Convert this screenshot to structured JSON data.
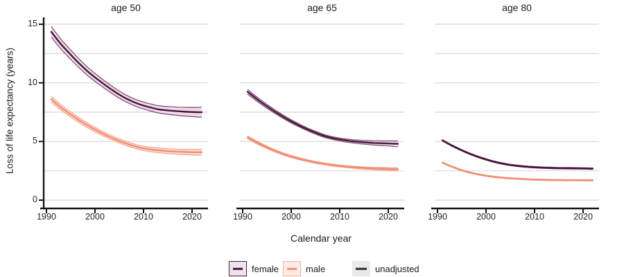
{
  "figure": {
    "y_axis_label": "Loss of life expectancy (years)",
    "x_axis_label": "Calendar year"
  },
  "colors": {
    "female_line": "#421739",
    "female_edge": "#7c4370",
    "female_band": "#eedbe9",
    "male_line": "#f08d74",
    "male_edge": "#f3a48a",
    "male_band": "#fbded4",
    "unadjusted_line": "#2d2d2d",
    "gridline": "#d8d8d8",
    "axis": "#141414",
    "legend_female_bg": "#f1e3ed",
    "legend_female_border": "#4a1f42",
    "legend_male_bg": "#fdece4",
    "legend_male_border": "#f3b098",
    "legend_unadjusted_bg": "#e9e9e9"
  },
  "legend": {
    "items": [
      {
        "label": "female"
      },
      {
        "label": "male"
      },
      {
        "label": "unadjusted"
      }
    ]
  },
  "chart_data": [
    {
      "type": "line",
      "title": "age 50",
      "ylim": [
        0,
        15
      ],
      "yticks": [
        0,
        5,
        10,
        15
      ],
      "gridline_step": 2.5,
      "xticks": [
        1990,
        2000,
        2010,
        2020
      ],
      "x": [
        1991,
        1993,
        1995,
        1997,
        1999,
        2001,
        2003,
        2005,
        2007,
        2009,
        2011,
        2013,
        2015,
        2017,
        2019,
        2021,
        2022
      ],
      "series": [
        {
          "name": "female",
          "values": [
            14.35,
            13.3,
            12.4,
            11.55,
            10.8,
            10.15,
            9.55,
            9.0,
            8.55,
            8.2,
            7.95,
            7.75,
            7.65,
            7.58,
            7.53,
            7.5,
            7.5
          ],
          "upper": [
            14.8,
            13.72,
            12.8,
            11.92,
            11.15,
            10.48,
            9.86,
            9.3,
            8.84,
            8.49,
            8.25,
            8.06,
            7.98,
            7.93,
            7.91,
            7.91,
            7.93
          ],
          "lower": [
            13.9,
            12.88,
            12.0,
            11.18,
            10.45,
            9.82,
            9.24,
            8.7,
            8.26,
            7.91,
            7.65,
            7.44,
            7.32,
            7.23,
            7.15,
            7.09,
            7.07
          ]
        },
        {
          "name": "male",
          "values": [
            8.6,
            7.9,
            7.3,
            6.75,
            6.25,
            5.8,
            5.4,
            5.05,
            4.75,
            4.5,
            4.35,
            4.25,
            4.18,
            4.13,
            4.1,
            4.08,
            4.08
          ],
          "upper": [
            8.85,
            8.13,
            7.52,
            6.96,
            6.45,
            5.99,
            5.58,
            5.23,
            4.93,
            4.68,
            4.54,
            4.45,
            4.39,
            4.35,
            4.33,
            4.33,
            4.34
          ],
          "lower": [
            8.35,
            7.67,
            7.08,
            6.54,
            6.05,
            5.61,
            5.22,
            4.87,
            4.57,
            4.32,
            4.16,
            4.05,
            3.97,
            3.91,
            3.87,
            3.83,
            3.82
          ]
        }
      ]
    },
    {
      "type": "line",
      "title": "age 65",
      "ylim": [
        0,
        15
      ],
      "yticks": [
        0,
        5,
        10,
        15
      ],
      "gridline_step": 2.5,
      "xticks": [
        1990,
        2000,
        2010,
        2020
      ],
      "x": [
        1991,
        1993,
        1995,
        1997,
        1999,
        2001,
        2003,
        2005,
        2007,
        2009,
        2011,
        2013,
        2015,
        2017,
        2019,
        2021,
        2022
      ],
      "series": [
        {
          "name": "female",
          "values": [
            9.25,
            8.6,
            8.0,
            7.45,
            6.95,
            6.5,
            6.1,
            5.75,
            5.45,
            5.25,
            5.1,
            5.0,
            4.93,
            4.88,
            4.85,
            4.82,
            4.8
          ],
          "upper": [
            9.45,
            8.78,
            8.17,
            7.6,
            7.09,
            6.63,
            6.22,
            5.87,
            5.57,
            5.37,
            5.23,
            5.14,
            5.09,
            5.06,
            5.05,
            5.05,
            5.05
          ],
          "lower": [
            9.05,
            8.42,
            7.83,
            7.3,
            6.81,
            6.37,
            5.98,
            5.63,
            5.33,
            5.13,
            4.97,
            4.86,
            4.77,
            4.7,
            4.65,
            4.59,
            4.55
          ]
        },
        {
          "name": "male",
          "values": [
            5.35,
            4.9,
            4.5,
            4.15,
            3.85,
            3.6,
            3.4,
            3.22,
            3.08,
            2.96,
            2.87,
            2.8,
            2.74,
            2.7,
            2.67,
            2.64,
            2.62
          ],
          "upper": [
            5.48,
            5.02,
            4.61,
            4.25,
            3.94,
            3.69,
            3.48,
            3.3,
            3.16,
            3.04,
            2.95,
            2.89,
            2.83,
            2.8,
            2.78,
            2.76,
            2.75
          ],
          "lower": [
            5.22,
            4.78,
            4.39,
            4.05,
            3.76,
            3.51,
            3.32,
            3.14,
            3.0,
            2.88,
            2.79,
            2.71,
            2.65,
            2.6,
            2.56,
            2.52,
            2.49
          ]
        }
      ]
    },
    {
      "type": "line",
      "title": "age 80",
      "ylim": [
        0,
        15
      ],
      "yticks": [
        0,
        5,
        10,
        15
      ],
      "gridline_step": 2.5,
      "xticks": [
        1990,
        2000,
        2010,
        2020
      ],
      "x": [
        1991,
        1993,
        1995,
        1997,
        1999,
        2001,
        2003,
        2005,
        2007,
        2009,
        2011,
        2013,
        2015,
        2017,
        2019,
        2021,
        2022
      ],
      "series": [
        {
          "name": "female",
          "values": [
            5.1,
            4.65,
            4.25,
            3.9,
            3.6,
            3.35,
            3.15,
            3.0,
            2.9,
            2.83,
            2.78,
            2.75,
            2.73,
            2.72,
            2.71,
            2.7,
            2.68
          ],
          "upper": [
            5.16,
            4.71,
            4.31,
            3.96,
            3.66,
            3.41,
            3.21,
            3.06,
            2.96,
            2.89,
            2.84,
            2.81,
            2.79,
            2.78,
            2.77,
            2.76,
            2.74
          ],
          "lower": [
            5.04,
            4.59,
            4.19,
            3.84,
            3.54,
            3.29,
            3.09,
            2.94,
            2.84,
            2.77,
            2.72,
            2.69,
            2.67,
            2.66,
            2.65,
            2.64,
            2.62
          ]
        },
        {
          "name": "male",
          "values": [
            3.2,
            2.85,
            2.55,
            2.32,
            2.15,
            2.02,
            1.93,
            1.86,
            1.81,
            1.77,
            1.74,
            1.72,
            1.71,
            1.7,
            1.7,
            1.69,
            1.69
          ],
          "upper": [
            3.25,
            2.9,
            2.6,
            2.37,
            2.2,
            2.07,
            1.98,
            1.91,
            1.86,
            1.82,
            1.79,
            1.77,
            1.76,
            1.75,
            1.75,
            1.74,
            1.74
          ],
          "lower": [
            3.15,
            2.8,
            2.5,
            2.27,
            2.1,
            1.97,
            1.88,
            1.81,
            1.76,
            1.72,
            1.69,
            1.67,
            1.66,
            1.65,
            1.65,
            1.64,
            1.64
          ]
        }
      ]
    }
  ]
}
